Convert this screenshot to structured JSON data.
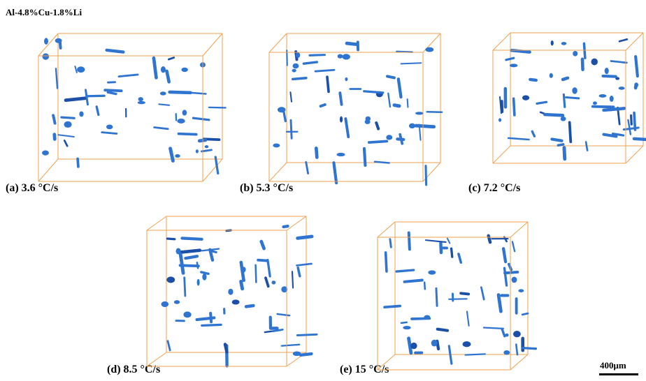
{
  "figure": {
    "title": "Al-4.8%Cu-1.8%Li",
    "panels": [
      {
        "label": "(a) 3.6 °C/s"
      },
      {
        "label": "(b) 5.3 °C/s"
      },
      {
        "label": "(c) 7.2 °C/s"
      },
      {
        "label": "(d) 8.5 °C/s"
      },
      {
        "label": "(e) 15 °C/s"
      }
    ],
    "scale_bar": "400μm"
  }
}
